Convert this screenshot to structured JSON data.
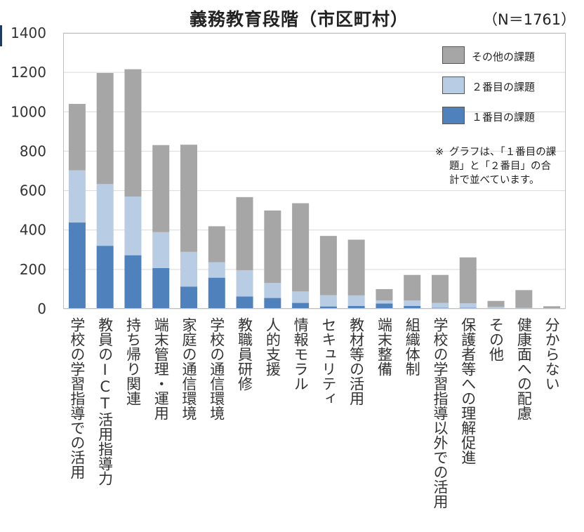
{
  "chart_data": {
    "type": "bar",
    "stacked": true,
    "title": "義務教育段階（市区町村）",
    "n_label": "（N＝1761）",
    "ylim": [
      0,
      1400
    ],
    "yticks": [
      0,
      200,
      400,
      600,
      800,
      1000,
      1200,
      1400
    ],
    "categories": [
      "学校の学習指導での活用",
      "教員のICT活用指導力",
      "持ち帰り関連",
      "端末管理・運用",
      "家庭の通信環境",
      "学校の通信環境",
      "教職員研修",
      "人的支援",
      "情報モラル",
      "セキュリティ",
      "教材等の活用",
      "端末整備",
      "組織体制",
      "学校の学習指導以外での活用",
      "保護者等への理解促進",
      "その他",
      "健康面への配慮",
      "分からない"
    ],
    "series": [
      {
        "name": "１番目の課題",
        "color": "#4f81bd",
        "values": [
          438,
          320,
          272,
          207,
          113,
          158,
          63,
          55,
          30,
          12,
          15,
          27,
          15,
          5,
          5,
          3,
          2,
          1
        ]
      },
      {
        "name": "２番目の課題",
        "color": "#b8cce4",
        "values": [
          265,
          313,
          298,
          182,
          176,
          78,
          133,
          76,
          58,
          57,
          53,
          15,
          27,
          25,
          23,
          7,
          3,
          2
        ]
      },
      {
        "name": "その他の課題",
        "color": "#a6a6a6",
        "values": [
          337,
          564,
          646,
          442,
          544,
          183,
          371,
          368,
          448,
          301,
          283,
          58,
          130,
          142,
          233,
          30,
          90,
          10
        ]
      }
    ],
    "legend": {
      "placement": "top-right",
      "order": [
        "その他の課題",
        "２番目の課題",
        "１番目の課題"
      ]
    },
    "grid": true,
    "note_mark": "※",
    "note": "グラフは、「１番目の課題」と「２番目」の合計で並べています。"
  }
}
